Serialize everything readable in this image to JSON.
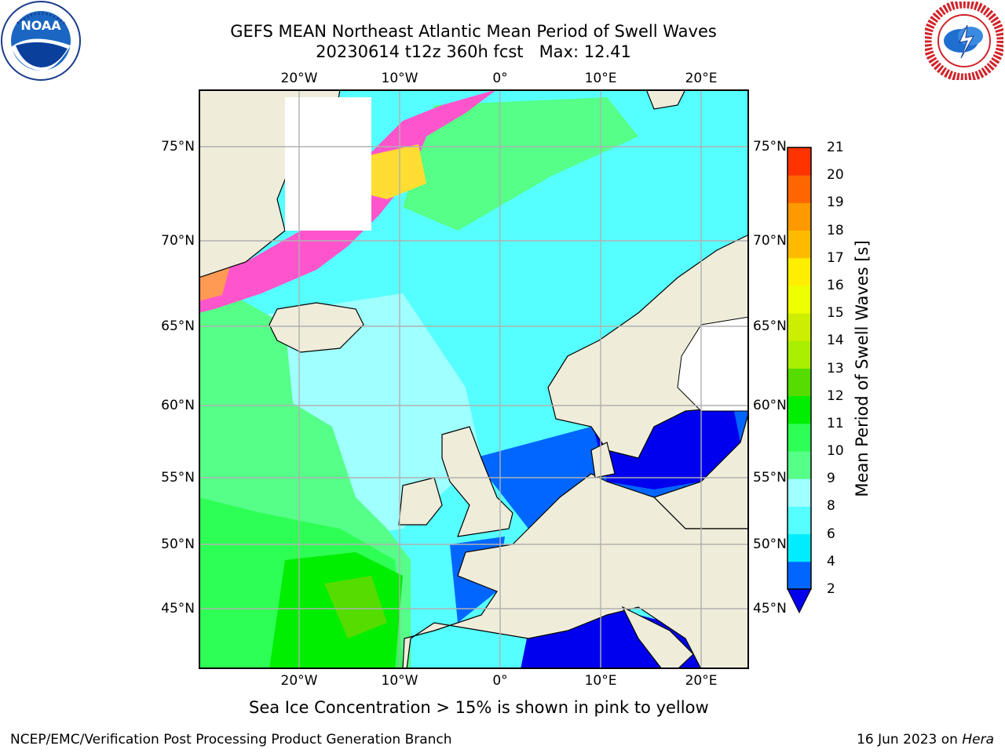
{
  "title": {
    "line1": "GEFS MEAN Northeast Atlantic Mean Period of Swell Waves",
    "line2": "20230614 t12z 360h fcst   Max: 12.41"
  },
  "logos": {
    "left": "noaa-logo",
    "right": "national-weather-service-logo"
  },
  "map": {
    "lon_ticks": [
      {
        "label": "20°W",
        "lon": -20
      },
      {
        "label": "10°W",
        "lon": -10
      },
      {
        "label": "0°",
        "lon": 0
      },
      {
        "label": "10°E",
        "lon": 10
      },
      {
        "label": "20°E",
        "lon": 20
      }
    ],
    "lat_ticks": [
      {
        "label": "75°N",
        "lat": 75
      },
      {
        "label": "70°N",
        "lat": 70
      },
      {
        "label": "65°N",
        "lat": 65
      },
      {
        "label": "60°N",
        "lat": 60
      },
      {
        "label": "55°N",
        "lat": 55
      },
      {
        "label": "50°N",
        "lat": 50
      },
      {
        "label": "45°N",
        "lat": 45
      }
    ],
    "colors": {
      "land": "#efedda",
      "grid": "#b0b0b0",
      "coast": "#000000"
    }
  },
  "colorbar": {
    "label": "Mean Period of Swell Waves [s]",
    "ticks": [
      "2",
      "4",
      "6",
      "8",
      "9",
      "10",
      "11",
      "12",
      "13",
      "14",
      "15",
      "16",
      "17",
      "18",
      "19",
      "20",
      "21"
    ],
    "colors": [
      "#0066ff",
      "#00eeff",
      "#55ffff",
      "#a0ffff",
      "#55ff88",
      "#2eff55",
      "#00ee00",
      "#55dd00",
      "#aaee00",
      "#ccee00",
      "#eeff00",
      "#ffee00",
      "#ffbb00",
      "#ff9900",
      "#ff6600",
      "#ff3300",
      "#ff0000"
    ],
    "under_color": "#0000ee"
  },
  "note": "Sea Ice Concentration > 15% is shown in pink to yellow",
  "footer": {
    "left": "NCEP/EMC/Verification Post Processing Product Generation Branch",
    "right_date": "16 Jun 2023 on",
    "right_host": "Hera"
  }
}
